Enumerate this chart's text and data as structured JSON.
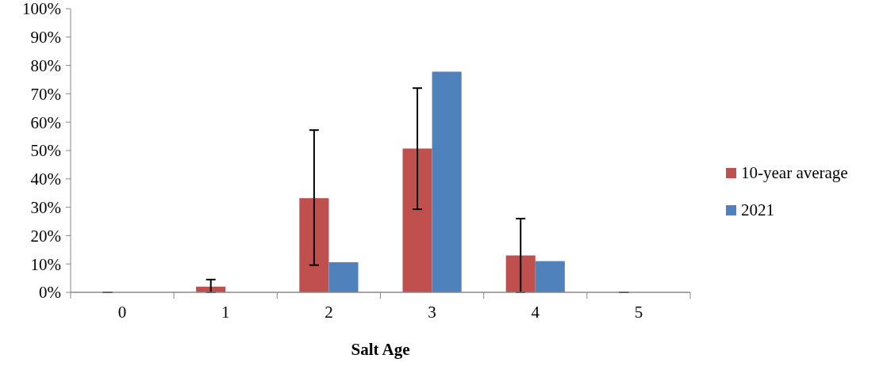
{
  "chart_data": {
    "type": "bar",
    "xlabel": "Salt Age",
    "categories": [
      "0",
      "1",
      "2",
      "3",
      "4",
      "5"
    ],
    "series": [
      {
        "name": "10-year average",
        "color": "#c0504d",
        "values": [
          0,
          2.0,
          33.2,
          50.7,
          13.0,
          0
        ],
        "errors": [
          0,
          [
            0,
            4.5
          ],
          [
            9.6,
            57.2
          ],
          [
            29.3,
            72.0
          ],
          [
            0,
            26.0
          ],
          0
        ]
      },
      {
        "name": "2021",
        "color": "#4f81bd",
        "values": [
          0,
          0,
          10.6,
          77.8,
          11.0,
          0
        ]
      }
    ],
    "ylim": [
      0,
      100
    ],
    "yticks": [
      {
        "value": 0,
        "label": "0%"
      },
      {
        "value": 10,
        "label": "10%"
      },
      {
        "value": 20,
        "label": "20%"
      },
      {
        "value": 30,
        "label": "30%"
      },
      {
        "value": 40,
        "label": "40%"
      },
      {
        "value": 50,
        "label": "50%"
      },
      {
        "value": 60,
        "label": "60%"
      },
      {
        "value": 70,
        "label": "70%"
      },
      {
        "value": 80,
        "label": "80%"
      },
      {
        "value": 90,
        "label": "90%"
      },
      {
        "value": 100,
        "label": "100%"
      }
    ],
    "grid": false,
    "legend": "right"
  }
}
